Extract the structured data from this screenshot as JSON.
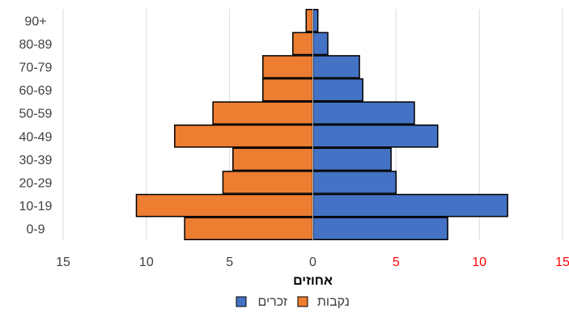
{
  "chart_data": {
    "type": "bar",
    "orientation": "horizontal",
    "chart_style": "population pyramid",
    "categories": [
      "0-9",
      "10-19",
      "20-29",
      "30-39",
      "40-49",
      "50-59",
      "60-69",
      "70-79",
      "80-89",
      "90+"
    ],
    "series": [
      {
        "name": "זכרים",
        "side": "right",
        "color": "#4472C4",
        "values": [
          8.1,
          11.7,
          5.0,
          4.7,
          7.5,
          6.1,
          3.0,
          2.8,
          0.9,
          0.3
        ]
      },
      {
        "name": "נקבות",
        "side": "left",
        "color": "#ED7D31",
        "values": [
          7.7,
          10.6,
          5.4,
          4.8,
          8.3,
          6.0,
          3.0,
          3.0,
          1.2,
          0.4
        ]
      }
    ],
    "xlabel": "אחוזים",
    "xlim": [
      -15,
      15
    ],
    "xticks": [
      {
        "value": -15,
        "label": "15",
        "color": "#404040"
      },
      {
        "value": -10,
        "label": "10",
        "color": "#404040"
      },
      {
        "value": -5,
        "label": "5",
        "color": "#404040"
      },
      {
        "value": 0,
        "label": "0",
        "color": "#404040"
      },
      {
        "value": 5,
        "label": "5",
        "color": "#FF0000"
      },
      {
        "value": 10,
        "label": "10",
        "color": "#FF0000"
      },
      {
        "value": 15,
        "label": "15",
        "color": "#FF0000"
      }
    ],
    "grid": "vertical",
    "legend_position": "bottom",
    "bar_outline": "#000000"
  }
}
